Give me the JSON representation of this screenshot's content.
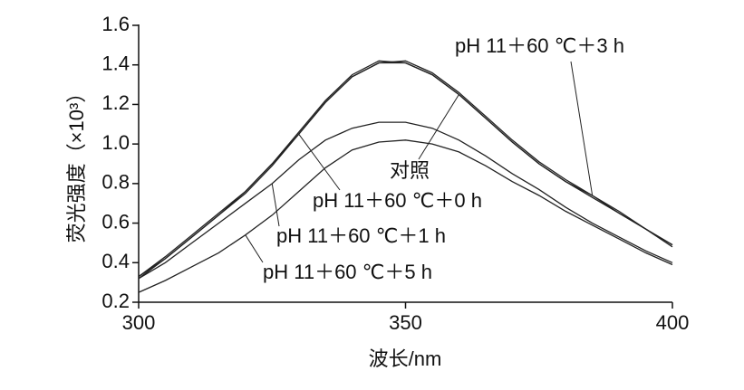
{
  "chart_data": {
    "type": "line",
    "x_label": "波长/nm",
    "y_label": "荧光强度（×10³）",
    "x": [
      300,
      305,
      310,
      315,
      320,
      325,
      330,
      335,
      340,
      345,
      350,
      355,
      360,
      365,
      370,
      375,
      380,
      385,
      390,
      395,
      400
    ],
    "series": [
      {
        "name": "对照",
        "color": "#222222",
        "values": [
          0.33,
          0.43,
          0.54,
          0.65,
          0.76,
          0.9,
          1.06,
          1.22,
          1.35,
          1.42,
          1.41,
          1.35,
          1.25,
          1.13,
          1.01,
          0.9,
          0.81,
          0.74,
          0.65,
          0.57,
          0.49
        ]
      },
      {
        "name": "pH 11＋60 ℃＋0 h",
        "color": "#222222",
        "values": [
          0.32,
          0.42,
          0.53,
          0.64,
          0.75,
          0.89,
          1.05,
          1.21,
          1.34,
          1.41,
          1.41,
          1.35,
          1.25,
          1.13,
          1.01,
          0.9,
          0.81,
          0.73,
          0.65,
          0.57,
          0.49
        ]
      },
      {
        "name": "pH 11＋60 ℃＋3 h",
        "color": "#222222",
        "values": [
          0.33,
          0.42,
          0.53,
          0.64,
          0.76,
          0.9,
          1.05,
          1.21,
          1.34,
          1.41,
          1.42,
          1.36,
          1.26,
          1.14,
          1.02,
          0.91,
          0.82,
          0.74,
          0.66,
          0.57,
          0.48
        ]
      },
      {
        "name": "pH 11＋60 ℃＋1 h",
        "color": "#222222",
        "values": [
          0.32,
          0.4,
          0.5,
          0.6,
          0.7,
          0.8,
          0.92,
          1.02,
          1.08,
          1.11,
          1.11,
          1.08,
          1.02,
          0.94,
          0.85,
          0.77,
          0.68,
          0.6,
          0.53,
          0.46,
          0.4
        ]
      },
      {
        "name": "pH 11＋60 ℃＋5 h",
        "color": "#222222",
        "values": [
          0.25,
          0.31,
          0.38,
          0.45,
          0.54,
          0.64,
          0.76,
          0.88,
          0.97,
          1.01,
          1.02,
          1.0,
          0.96,
          0.89,
          0.81,
          0.74,
          0.66,
          0.59,
          0.52,
          0.45,
          0.39
        ]
      }
    ],
    "xlim": [
      300,
      400
    ],
    "xticks": [
      300,
      350,
      400
    ],
    "ylim": [
      0.2,
      1.6
    ],
    "yticks": [
      0.2,
      0.4,
      0.6,
      0.8,
      {
        "value": 1,
        "label": "1.0"
      },
      1.2,
      1.4,
      1.6
    ],
    "grid": false
  }
}
